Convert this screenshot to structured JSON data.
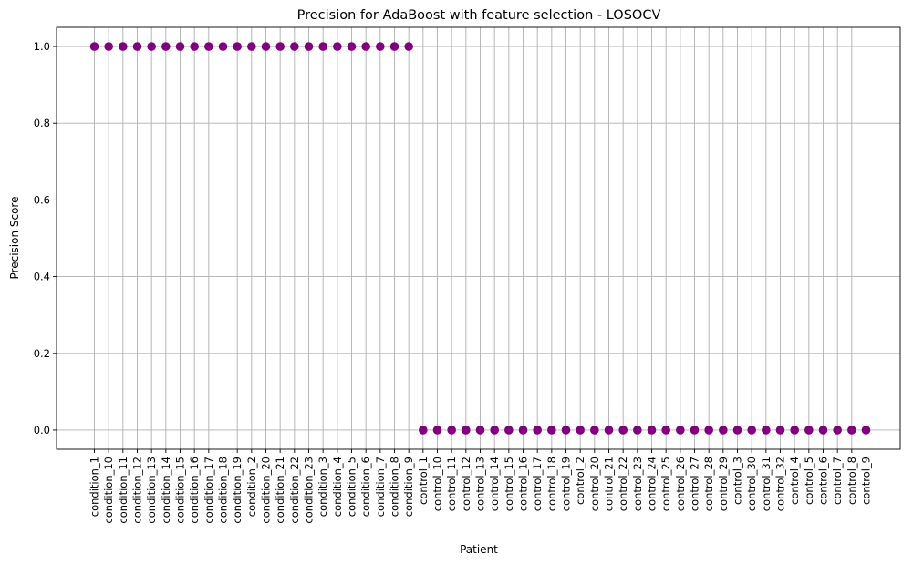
{
  "chart_data": {
    "type": "scatter",
    "title": "Precision for AdaBoost with feature selection - LOSOCV",
    "xlabel": "Patient",
    "ylabel": "Precision Score",
    "ylim": [
      -0.05,
      1.05
    ],
    "yticks": [
      0.0,
      0.2,
      0.4,
      0.6,
      0.8,
      1.0
    ],
    "ytick_labels": [
      "0.0",
      "0.2",
      "0.4",
      "0.6",
      "0.8",
      "1.0"
    ],
    "grid": true,
    "marker_color": "#800080",
    "categories": [
      "condition_1",
      "condition_10",
      "condition_11",
      "condition_12",
      "condition_13",
      "condition_14",
      "condition_15",
      "condition_16",
      "condition_17",
      "condition_18",
      "condition_19",
      "condition_2",
      "condition_20",
      "condition_21",
      "condition_22",
      "condition_23",
      "condition_3",
      "condition_4",
      "condition_5",
      "condition_6",
      "condition_7",
      "condition_8",
      "condition_9",
      "control_1",
      "control_10",
      "control_11",
      "control_12",
      "control_13",
      "control_14",
      "control_15",
      "control_16",
      "control_17",
      "control_18",
      "control_19",
      "control_2",
      "control_20",
      "control_21",
      "control_22",
      "control_23",
      "control_24",
      "control_25",
      "control_26",
      "control_27",
      "control_28",
      "control_29",
      "control_3",
      "control_30",
      "control_31",
      "control_32",
      "control_4",
      "control_5",
      "control_6",
      "control_7",
      "control_8",
      "control_9"
    ],
    "values": [
      1.0,
      1.0,
      1.0,
      1.0,
      1.0,
      1.0,
      1.0,
      1.0,
      1.0,
      1.0,
      1.0,
      1.0,
      1.0,
      1.0,
      1.0,
      1.0,
      1.0,
      1.0,
      1.0,
      1.0,
      1.0,
      1.0,
      1.0,
      0.0,
      0.0,
      0.0,
      0.0,
      0.0,
      0.0,
      0.0,
      0.0,
      0.0,
      0.0,
      0.0,
      0.0,
      0.0,
      0.0,
      0.0,
      0.0,
      0.0,
      0.0,
      0.0,
      0.0,
      0.0,
      0.0,
      0.0,
      0.0,
      0.0,
      0.0,
      0.0,
      0.0,
      0.0,
      0.0,
      0.0,
      0.0
    ]
  }
}
